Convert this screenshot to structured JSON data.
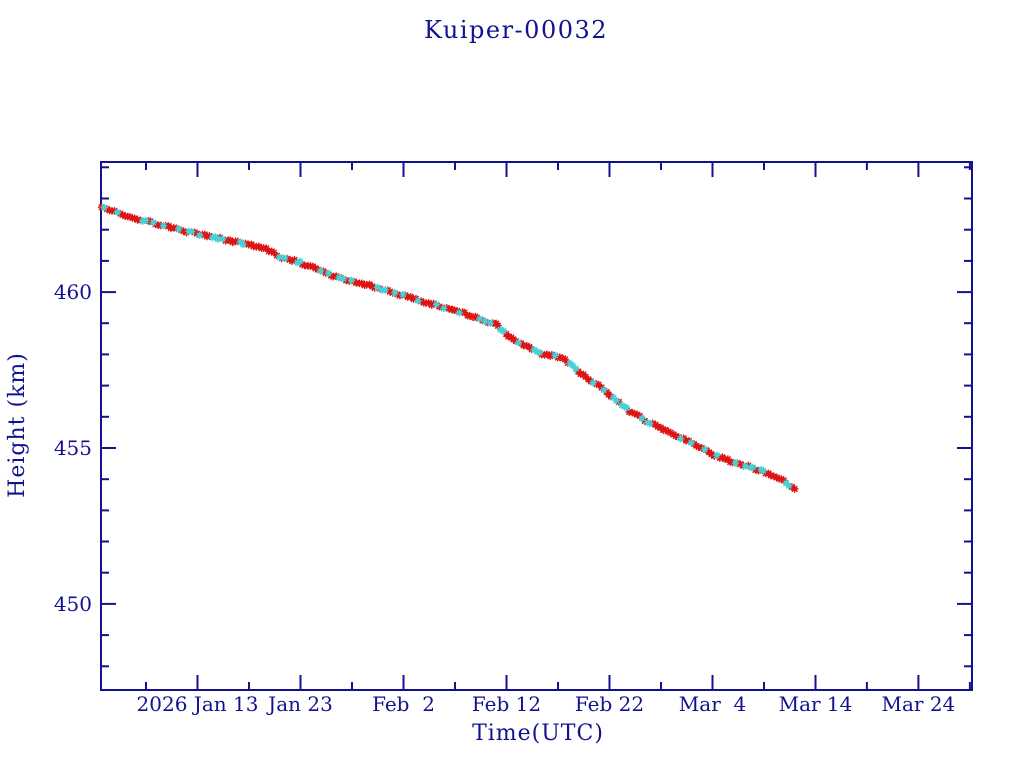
{
  "window": {
    "background": "#ffffff"
  },
  "style": {
    "axis_color": "#12128f",
    "text_color": "#12128f",
    "line_color": "#12128f",
    "primary_marker_color": "#dd1414",
    "secondary_marker_color": "#44d2d6"
  },
  "chart_data": {
    "type": "line",
    "title": "Kuiper-00032",
    "xlabel": "Time(UTC)",
    "ylabel": "Height (km)",
    "x_axis": {
      "unit": "day of year 2026 (Jan 1 = 1)",
      "lim": [
        3.63,
        88.2
      ],
      "major_ticks": [
        {
          "doy": 13,
          "label": "2026 Jan 13"
        },
        {
          "doy": 23,
          "label": "Jan 23"
        },
        {
          "doy": 33,
          "label": "Feb  2"
        },
        {
          "doy": 43,
          "label": "Feb 12"
        },
        {
          "doy": 53,
          "label": "Feb 22"
        },
        {
          "doy": 63,
          "label": "Mar  4"
        },
        {
          "doy": 73,
          "label": "Mar 14"
        },
        {
          "doy": 83,
          "label": "Mar 24"
        }
      ],
      "minor_tick_step_days": 5
    },
    "y_axis": {
      "lim": [
        447.24,
        464.17
      ],
      "major_ticks": [
        450,
        455,
        460
      ],
      "minor_tick_step_km": 1
    },
    "series": [
      {
        "name": "height-primary",
        "marker": "asterisk",
        "color": "#dd1414",
        "share": 0.78
      },
      {
        "name": "height-secondary",
        "marker": "asterisk",
        "color": "#44d2d6",
        "share": 0.22
      }
    ],
    "data_span_doy": [
      3.7,
      71.0
    ],
    "sample_step_days": 0.25,
    "approx_values": {
      "start_height_km": 462.7,
      "end_height_km": 453.7
    },
    "curve_control_points_doy_km": [
      [
        3.7,
        462.7
      ],
      [
        6.7,
        462.38
      ],
      [
        10.0,
        462.11
      ],
      [
        13.2,
        461.84
      ],
      [
        16.5,
        461.63
      ],
      [
        19.8,
        461.36
      ],
      [
        21.0,
        461.12
      ],
      [
        23.0,
        460.95
      ],
      [
        26.2,
        460.51
      ],
      [
        29.5,
        460.24
      ],
      [
        32.7,
        459.92
      ],
      [
        35.9,
        459.6
      ],
      [
        39.2,
        459.28
      ],
      [
        42.0,
        458.95
      ],
      [
        43.6,
        458.48
      ],
      [
        45.3,
        458.19
      ],
      [
        46.3,
        458.03
      ],
      [
        48.5,
        457.89
      ],
      [
        50.2,
        457.41
      ],
      [
        51.8,
        457.03
      ],
      [
        53.4,
        456.61
      ],
      [
        55.0,
        456.18
      ],
      [
        56.6,
        455.86
      ],
      [
        58.2,
        455.59
      ],
      [
        59.9,
        455.33
      ],
      [
        61.5,
        455.06
      ],
      [
        63.1,
        454.79
      ],
      [
        64.7,
        454.58
      ],
      [
        66.3,
        454.42
      ],
      [
        67.9,
        454.26
      ],
      [
        69.5,
        454.04
      ],
      [
        71.0,
        453.67
      ]
    ]
  }
}
